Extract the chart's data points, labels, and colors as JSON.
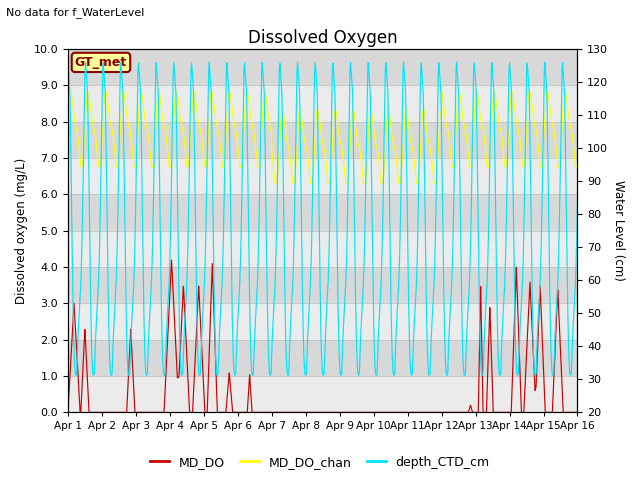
{
  "title": "Dissolved Oxygen",
  "ylabel_left": "Dissolved oxygen (mg/L)",
  "ylabel_right": "Water Level (cm)",
  "ylim_left": [
    0,
    10
  ],
  "ylim_right": [
    20,
    130
  ],
  "xlim": [
    0,
    15
  ],
  "xtick_labels": [
    "Apr 1",
    "Apr 2",
    "Apr 3",
    "Apr 4",
    "Apr 5",
    "Apr 6",
    "Apr 7",
    "Apr 8",
    "Apr 9",
    "Apr 10",
    "Apr 11",
    "Apr 12",
    "Apr 13",
    "Apr 14",
    "Apr 15",
    "Apr 16"
  ],
  "yticks_left": [
    0.0,
    1.0,
    2.0,
    3.0,
    4.0,
    5.0,
    6.0,
    7.0,
    8.0,
    9.0,
    10.0
  ],
  "yticks_right": [
    20,
    30,
    40,
    50,
    60,
    70,
    80,
    90,
    100,
    110,
    120,
    130
  ],
  "color_MD_DO": "#cc0000",
  "color_MD_DO_chan": "#ffff00",
  "color_depth_CTD": "#00e5ff",
  "no_data_text": "No data for f_WaterLevel",
  "gt_met_label": "GT_met",
  "legend_labels": [
    "MD_DO",
    "MD_DO_chan",
    "depth_CTD_cm"
  ],
  "background_color": "#ffffff",
  "plot_bg_light": "#f0f0f0",
  "plot_bg_dark": "#dcdcdc",
  "stripe_light": "#ebebeb",
  "stripe_dark": "#d8d8d8"
}
